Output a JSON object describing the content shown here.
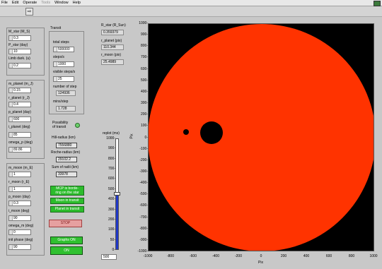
{
  "menu": {
    "items": [
      "File",
      "Edit",
      "Operate",
      "Tools",
      "Window",
      "Help"
    ]
  },
  "star_panel": {
    "m_star_label": "M_star (M_S)",
    "m_star_value": "0.3",
    "p_star_label": "P_star (day)",
    "p_star_value": "10",
    "limb_dark_label": "Limb dark. (u)",
    "limb_dark_value": "0.2"
  },
  "planet_panel": {
    "m_planet_label": "m_planet (m_J)",
    "m_planet_value": "0.15",
    "r_planet_label": "r_planet (r_J)",
    "r_planet_value": "0.4",
    "p_planet_label": "p_planet (day)",
    "p_planet_value": "600",
    "i_planet_label": "i_planet (deg)",
    "i_planet_value": "85",
    "omega_p_label": "omega_p (deg)",
    "omega_p_value": "89.86"
  },
  "moon_panel": {
    "m_moon_label": "m_moon (m_E)",
    "m_moon_value": "1",
    "r_moon_label": "r_moon (r_E)",
    "r_moon_value": "1",
    "p_moon_label": "p_moon (day)",
    "p_moon_value": "0.3",
    "i_moon_label": "i_moon (deg)",
    "i_moon_value": "90",
    "omega_m_label": "omega_m (deg)",
    "omega_m_value": "0",
    "init_phase_label": "init phase (deg)",
    "init_phase_value": "90"
  },
  "transit_panel": {
    "title": "Transit",
    "total_steps_label": "total steps",
    "total_steps_value": "500000",
    "steps_s_label": "steps/s",
    "steps_s_value": "1000",
    "visible_steps_label": "visible steps/s",
    "visible_steps_value": "25",
    "number_of_step_label": "number of step",
    "number_of_step_value": "124936",
    "mins_step_label": "mins/step",
    "mins_step_value": "1.728",
    "possibility_label": "Possibility\nof transit",
    "hill_radius_label": "Hill-radius (km)",
    "hill_radius_value": "7556880",
    "roche_radius_label": "Roche-radius (km)",
    "roche_radius_value": "29102.2",
    "sum_radii_label": "Sum of radii (km)",
    "sum_radii_value": "33978",
    "mcp_label": "MCP is borde-\nring on the star",
    "moon_in_transit_label": "Moon in transit",
    "planet_in_transit_label": "Planet in transit",
    "stop_label": "STOP",
    "graphs_on_label": "Graphs ON",
    "on_label": "ON"
  },
  "readouts": {
    "r_star_label": "R_star (R_Sun)",
    "r_star_value": "0.359379",
    "r_planet_label": "r_planet (pix)",
    "r_planet_value": "110.344",
    "r_moon_label": "r_moon (pix)",
    "r_moon_value": "25.4989"
  },
  "replot": {
    "label": "replot (ms)",
    "value": "500",
    "level": 500,
    "ticks": [
      "1000",
      "900",
      "800",
      "700",
      "600",
      "500",
      "400",
      "300",
      "200",
      "100",
      "50",
      "0"
    ]
  },
  "plot": {
    "xlabel": "Pix",
    "ylabel": "Pix",
    "xticks": [
      "-1000",
      "-800",
      "-600",
      "-400",
      "-200",
      "0",
      "200",
      "400",
      "600",
      "800",
      "1000"
    ],
    "yticks": [
      "1000",
      "900",
      "800",
      "700",
      "600",
      "500",
      "400",
      "300",
      "200",
      "100",
      "0",
      "-100",
      "-200",
      "-300",
      "-400",
      "-500",
      "-600",
      "-700",
      "-800",
      "-900",
      "-1000"
    ],
    "star_color": "#ff3300",
    "background_color": "#000000"
  },
  "colors": {
    "green": "#2cbc2c",
    "led": "#6ad06a",
    "slider_fill": "#2038c8",
    "stop": "#e6a0a0"
  }
}
